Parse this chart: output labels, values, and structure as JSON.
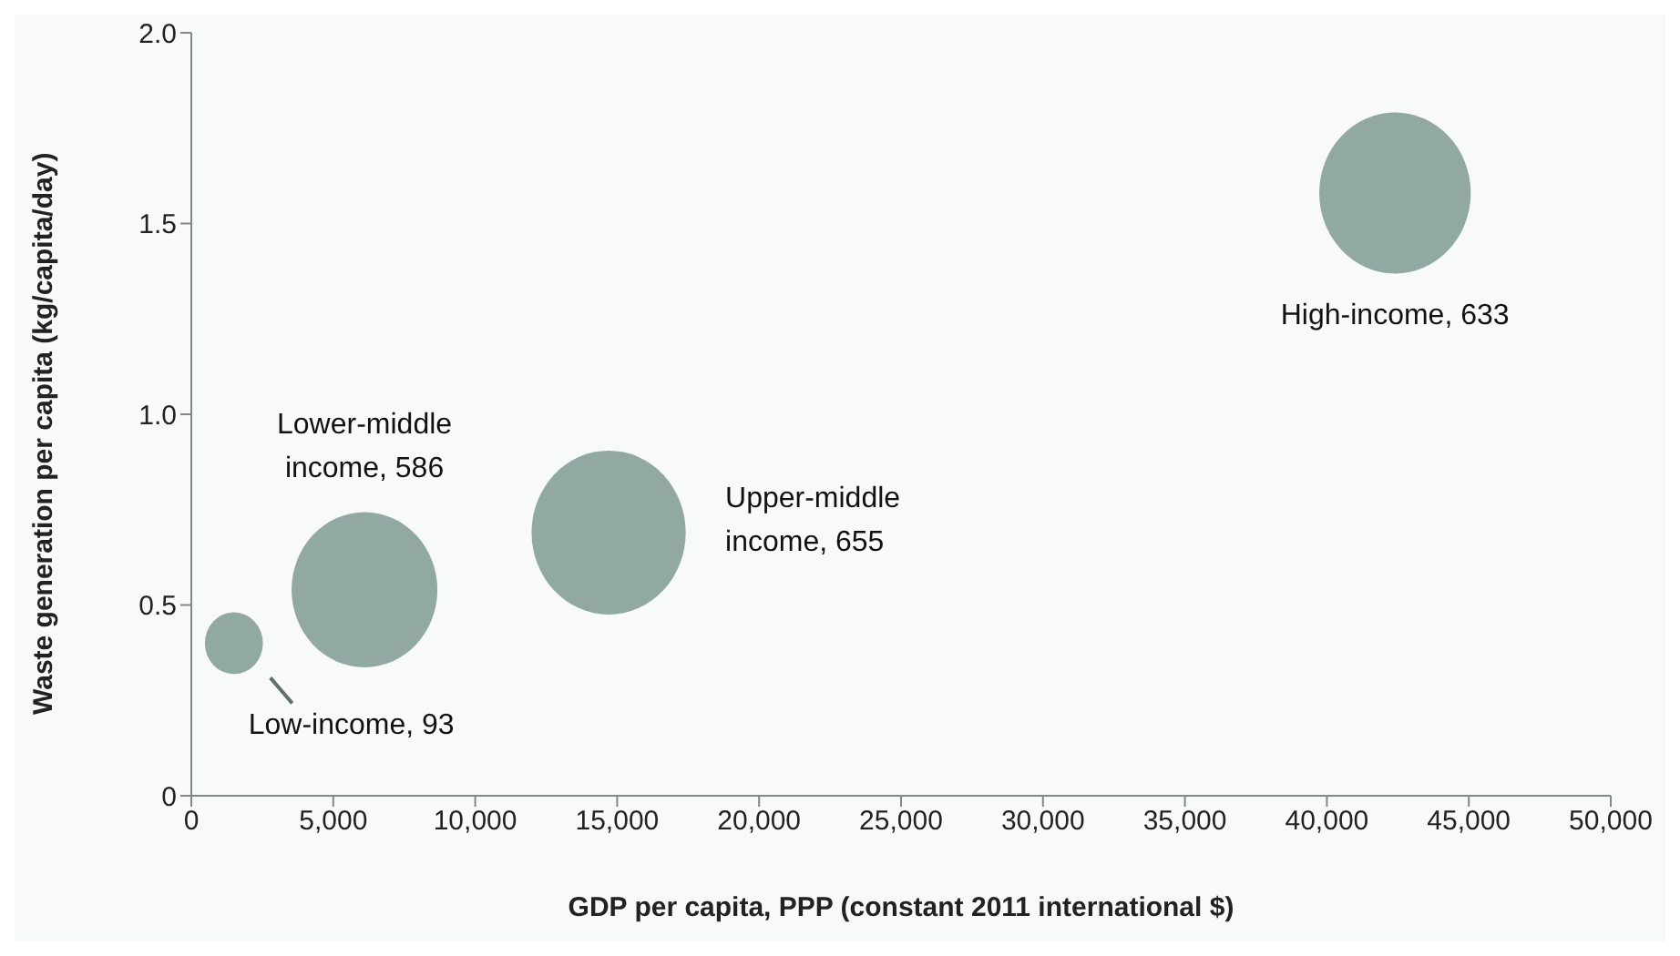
{
  "chart_data": {
    "type": "bubble",
    "xlabel": "GDP per capita, PPP (constant 2011 international $)",
    "ylabel": "Waste generation per capita (kg/capita/day)",
    "x": [
      1500,
      6100,
      14700,
      42400
    ],
    "values": [
      0.4,
      0.54,
      0.69,
      1.58
    ],
    "sizes": [
      0.142,
      0.895,
      1,
      0.966
    ],
    "color": "#91a8a3",
    "xlim": [
      0,
      50000
    ],
    "xticks": [
      0,
      {
        "value": 5000,
        "label": "5,000"
      },
      {
        "value": 10000,
        "label": "10,000"
      },
      {
        "value": 15000,
        "label": "15,000"
      },
      {
        "value": 20000,
        "label": "20,000"
      },
      {
        "value": 25000,
        "label": "25,000"
      },
      {
        "value": 30000,
        "label": "30,000"
      },
      {
        "value": 35000,
        "label": "35,000"
      },
      {
        "value": 40000,
        "label": "40,000"
      },
      {
        "value": 45000,
        "label": "45,000"
      },
      {
        "value": 50000,
        "label": "50,000"
      }
    ],
    "ylim": [
      0,
      2
    ],
    "yticks": [
      0,
      {
        "value": 0.5,
        "label": "0.5"
      },
      {
        "value": 1,
        "label": "1.0"
      },
      {
        "value": 1.5,
        "label": "1.5"
      },
      {
        "value": 2,
        "label": "2.0"
      }
    ],
    "grid": false,
    "legend": false,
    "annotations": [
      "Low-income, 93",
      "Lower-middle income, 586",
      "Upper-middle income, 655",
      "High-income, 633"
    ]
  }
}
